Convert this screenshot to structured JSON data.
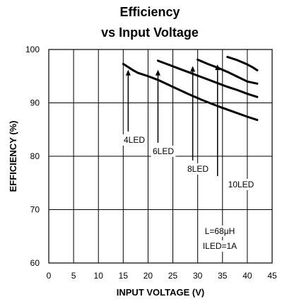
{
  "chart_data": {
    "type": "line",
    "title": [
      "Efficiency",
      "vs Input Voltage"
    ],
    "xlabel": "INPUT VOLTAGE (V)",
    "ylabel": "EFFICIENCY (%)",
    "xlim": [
      0,
      45
    ],
    "ylim": [
      60,
      100
    ],
    "xticks": [
      0,
      5,
      10,
      15,
      20,
      25,
      30,
      35,
      40,
      45
    ],
    "yticks": [
      60,
      70,
      80,
      90,
      100
    ],
    "grid": true,
    "legend": "none",
    "series": [
      {
        "name": "4LED",
        "x": [
          15,
          16,
          17,
          18,
          19,
          20,
          22,
          25,
          28,
          31,
          34,
          37,
          40,
          42
        ],
        "y": [
          97.3,
          96.7,
          96.1,
          95.6,
          95.3,
          95.0,
          94.3,
          93.0,
          91.7,
          90.5,
          89.4,
          88.4,
          87.4,
          86.8
        ]
      },
      {
        "name": "6LED",
        "x": [
          22,
          24,
          26,
          28,
          30,
          32,
          34,
          36,
          38,
          40,
          42
        ],
        "y": [
          97.9,
          97.2,
          96.5,
          95.8,
          95.1,
          94.4,
          93.7,
          93.0,
          92.4,
          91.7,
          91.1
        ]
      },
      {
        "name": "8LED",
        "x": [
          30,
          32,
          34,
          36,
          38,
          40,
          42
        ],
        "y": [
          98.1,
          97.3,
          96.6,
          95.8,
          94.9,
          94.0,
          93.6
        ]
      },
      {
        "name": "10LED",
        "x": [
          36,
          37,
          38,
          39,
          40,
          41,
          42
        ],
        "y": [
          98.6,
          98.3,
          98.0,
          97.6,
          97.2,
          96.7,
          96.1
        ]
      }
    ],
    "annotations": [
      {
        "text": "4LED",
        "arrow_to": [
          16,
          96.2
        ]
      },
      {
        "text": "6LED",
        "arrow_to": [
          22,
          96.2
        ]
      },
      {
        "text": "8LED",
        "arrow_to": [
          29,
          96.9
        ]
      },
      {
        "text": "10LED",
        "arrow_to": [
          34,
          97.2
        ]
      },
      {
        "text": "L=68μH"
      },
      {
        "text": "ILED=1A"
      }
    ]
  },
  "colors": {
    "line": "#000000",
    "grid": "#000000",
    "background": "#ffffff"
  }
}
